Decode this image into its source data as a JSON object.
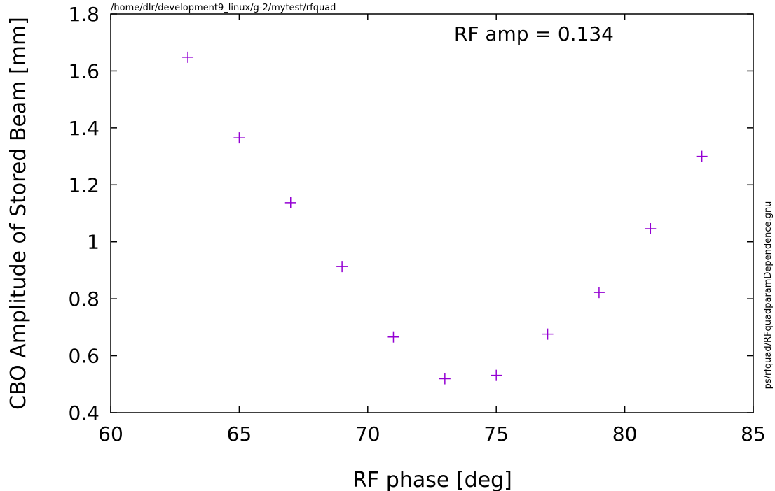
{
  "header_path": "/home/dlr/development9_linux/g-2/mytest/rfquad",
  "side_label": "ps/rfquad/RFquadparamDependence.gnu",
  "chart_data": {
    "type": "scatter",
    "title": "",
    "xlabel": "RF phase [deg]",
    "ylabel": "CBO Amplitude of Stored Beam [mm]",
    "xlim": [
      60,
      85
    ],
    "ylim": [
      0.4,
      1.8
    ],
    "x_ticks": [
      60,
      65,
      70,
      75,
      80,
      85
    ],
    "x_tick_labels": [
      "60",
      "65",
      "70",
      "75",
      "80",
      "85"
    ],
    "y_ticks": [
      0.4,
      0.6,
      0.8,
      1.0,
      1.2,
      1.4,
      1.6,
      1.8
    ],
    "y_tick_labels": [
      "0.4",
      "0.6",
      "0.8",
      "1",
      "1.2",
      "1.4",
      "1.6",
      "1.8"
    ],
    "grid": false,
    "annotation": "RF amp = 0.134",
    "marker": "plus",
    "marker_color": "#9400d3",
    "points": [
      {
        "x": 63,
        "y": 1.648
      },
      {
        "x": 65,
        "y": 1.365
      },
      {
        "x": 67,
        "y": 1.137
      },
      {
        "x": 69,
        "y": 0.913
      },
      {
        "x": 71,
        "y": 0.666
      },
      {
        "x": 73,
        "y": 0.519
      },
      {
        "x": 75,
        "y": 0.531
      },
      {
        "x": 77,
        "y": 0.676
      },
      {
        "x": 79,
        "y": 0.822
      },
      {
        "x": 81,
        "y": 1.046
      },
      {
        "x": 83,
        "y": 1.3
      }
    ]
  }
}
